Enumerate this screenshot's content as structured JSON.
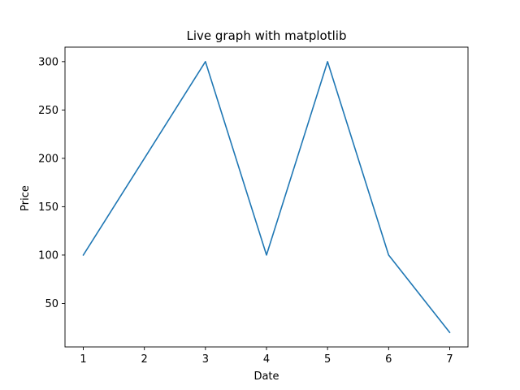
{
  "chart_data": {
    "type": "line",
    "title": "Live graph with matplotlib",
    "xlabel": "Date",
    "ylabel": "Price",
    "x": [
      1,
      2,
      3,
      4,
      5,
      6,
      7
    ],
    "series": [
      {
        "values": [
          100,
          200,
          300,
          100,
          300,
          100,
          20
        ]
      }
    ],
    "xlim": [
      0.7,
      7.3
    ],
    "ylim": [
      5,
      315
    ],
    "xticks": [
      1,
      2,
      3,
      4,
      5,
      6,
      7
    ],
    "yticks": [
      50,
      100,
      150,
      200,
      250,
      300
    ],
    "grid": false,
    "line_color": "#1f77b4"
  }
}
